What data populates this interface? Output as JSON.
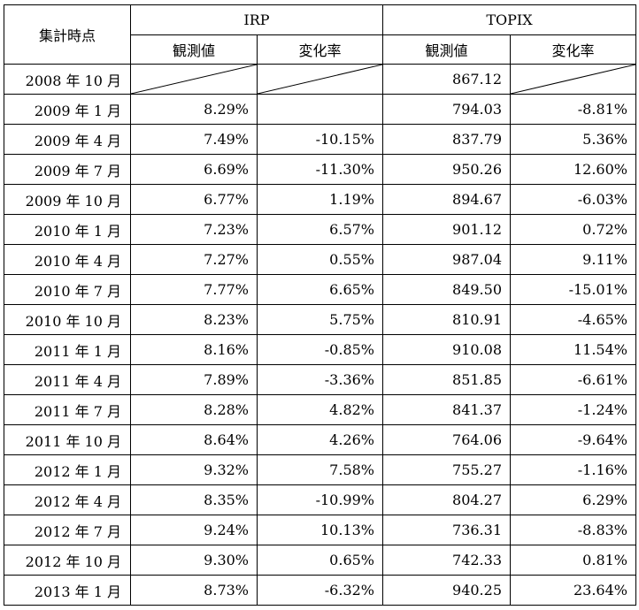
{
  "table": {
    "corner_header": "集計時点",
    "group_headers": [
      "IRP",
      "TOPIX"
    ],
    "sub_headers": [
      "観測値",
      "変化率",
      "観測値",
      "変化率"
    ],
    "rows": [
      {
        "date": "2008 年 10 月",
        "irp_value": "",
        "irp_change": "",
        "topix_value": "867.12",
        "topix_change": "",
        "diagonal_cells": [
          "irp_value",
          "irp_change",
          "topix_change"
        ]
      },
      {
        "date": "2009 年 1 月",
        "irp_value": "8.29%",
        "irp_change": "",
        "topix_value": "794.03",
        "topix_change": "-8.81%"
      },
      {
        "date": "2009 年 4 月",
        "irp_value": "7.49%",
        "irp_change": "-10.15%",
        "topix_value": "837.79",
        "topix_change": "5.36%"
      },
      {
        "date": "2009 年 7 月",
        "irp_value": "6.69%",
        "irp_change": "-11.30%",
        "topix_value": "950.26",
        "topix_change": "12.60%"
      },
      {
        "date": "2009 年 10 月",
        "irp_value": "6.77%",
        "irp_change": "1.19%",
        "topix_value": "894.67",
        "topix_change": "-6.03%"
      },
      {
        "date": "2010 年 1 月",
        "irp_value": "7.23%",
        "irp_change": "6.57%",
        "topix_value": "901.12",
        "topix_change": "0.72%"
      },
      {
        "date": "2010 年 4 月",
        "irp_value": "7.27%",
        "irp_change": "0.55%",
        "topix_value": "987.04",
        "topix_change": "9.11%"
      },
      {
        "date": "2010 年 7 月",
        "irp_value": "7.77%",
        "irp_change": "6.65%",
        "topix_value": "849.50",
        "topix_change": "-15.01%"
      },
      {
        "date": "2010 年 10 月",
        "irp_value": "8.23%",
        "irp_change": "5.75%",
        "topix_value": "810.91",
        "topix_change": "-4.65%"
      },
      {
        "date": "2011 年 1 月",
        "irp_value": "8.16%",
        "irp_change": "-0.85%",
        "topix_value": "910.08",
        "topix_change": "11.54%"
      },
      {
        "date": "2011 年 4 月",
        "irp_value": "7.89%",
        "irp_change": "-3.36%",
        "topix_value": "851.85",
        "topix_change": "-6.61%"
      },
      {
        "date": "2011 年 7 月",
        "irp_value": "8.28%",
        "irp_change": "4.82%",
        "topix_value": "841.37",
        "topix_change": "-1.24%"
      },
      {
        "date": "2011 年 10 月",
        "irp_value": "8.64%",
        "irp_change": "4.26%",
        "topix_value": "764.06",
        "topix_change": "-9.64%"
      },
      {
        "date": "2012 年 1 月",
        "irp_value": "9.32%",
        "irp_change": "7.58%",
        "topix_value": "755.27",
        "topix_change": "-1.16%"
      },
      {
        "date": "2012 年 4 月",
        "irp_value": "8.35%",
        "irp_change": "-10.99%",
        "topix_value": "804.27",
        "topix_change": "6.29%"
      },
      {
        "date": "2012 年 7 月",
        "irp_value": "9.24%",
        "irp_change": "10.13%",
        "topix_value": "736.31",
        "topix_change": "-8.83%"
      },
      {
        "date": "2012 年 10 月",
        "irp_value": "9.30%",
        "irp_change": "0.65%",
        "topix_value": "742.33",
        "topix_change": "0.81%"
      },
      {
        "date": "2013 年 1 月",
        "irp_value": "8.73%",
        "irp_change": "-6.32%",
        "topix_value": "940.25",
        "topix_change": "23.64%"
      }
    ]
  }
}
